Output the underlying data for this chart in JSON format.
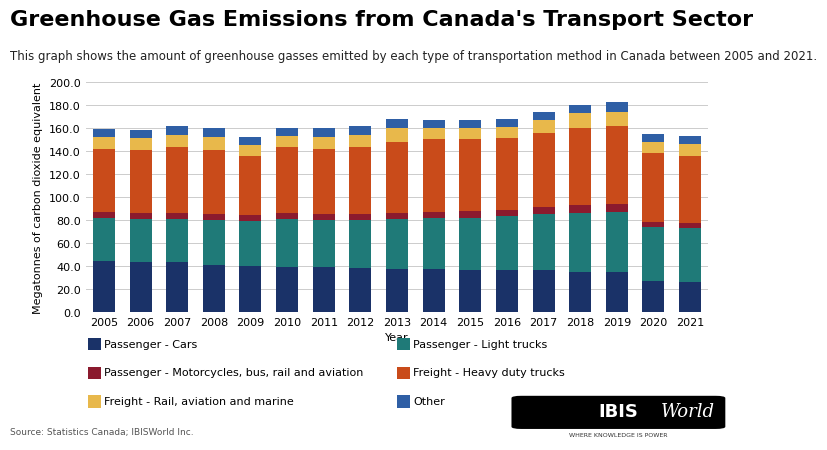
{
  "title": "Greenhouse Gas Emissions from Canada's Transport Sector",
  "subtitle": "This graph shows the amount of greenhouse gasses emitted by each type of transportation method in Canada between 2005 and 2021.",
  "ylabel": "Megatonnes of carbon dioxide equivalent",
  "xlabel": "Year",
  "source": "Source: Statistics Canada; IBISWorld Inc.",
  "years": [
    2005,
    2006,
    2007,
    2008,
    2009,
    2010,
    2011,
    2012,
    2013,
    2014,
    2015,
    2016,
    2017,
    2018,
    2019,
    2020,
    2021
  ],
  "series": {
    "Passenger - Cars": {
      "color": "#1a3268",
      "values": [
        44,
        43,
        43,
        41,
        40,
        39,
        39,
        38,
        37,
        37,
        36,
        36,
        36,
        35,
        35,
        27,
        26
      ]
    },
    "Passenger - Light trucks": {
      "color": "#1f7a78",
      "values": [
        38,
        38,
        38,
        39,
        39,
        42,
        41,
        42,
        44,
        45,
        46,
        47,
        49,
        51,
        52,
        47,
        47
      ]
    },
    "Passenger - Motorcycles, bus, rail and aviation": {
      "color": "#8b1a2e",
      "values": [
        5,
        5,
        5,
        5,
        5,
        5,
        5,
        5,
        5,
        5,
        6,
        6,
        6,
        7,
        7,
        4,
        4
      ]
    },
    "Freight - Heavy duty trucks": {
      "color": "#c94b1a",
      "values": [
        55,
        55,
        57,
        56,
        52,
        57,
        57,
        58,
        62,
        63,
        62,
        62,
        65,
        67,
        68,
        60,
        59
      ]
    },
    "Freight - Rail, aviation and marine": {
      "color": "#e8b84b",
      "values": [
        10,
        10,
        11,
        11,
        9,
        10,
        10,
        11,
        12,
        10,
        10,
        10,
        11,
        13,
        12,
        10,
        10
      ]
    },
    "Other": {
      "color": "#2f5fa5",
      "values": [
        7,
        7,
        8,
        8,
        7,
        7,
        8,
        8,
        8,
        7,
        7,
        7,
        7,
        7,
        9,
        7,
        7
      ]
    }
  },
  "ylim": [
    0,
    200
  ],
  "yticks": [
    0,
    20,
    40,
    60,
    80,
    100,
    120,
    140,
    160,
    180,
    200
  ],
  "background_color": "#ffffff",
  "plot_background": "#ffffff",
  "legend_col1": [
    "Passenger - Cars",
    "Passenger - Motorcycles, bus, rail and aviation",
    "Freight - Rail, aviation and marine"
  ],
  "legend_col2": [
    "Passenger - Light trucks",
    "Freight - Heavy duty trucks",
    "Other"
  ],
  "title_fontsize": 16,
  "subtitle_fontsize": 8.5,
  "label_fontsize": 8,
  "tick_fontsize": 8,
  "legend_fontsize": 8
}
